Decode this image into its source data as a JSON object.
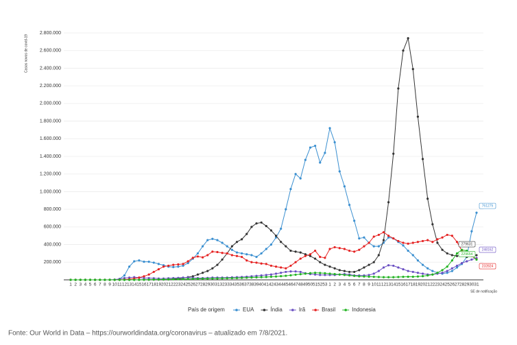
{
  "chart_data": {
    "type": "line",
    "y_label": "Casos novos de covid-19",
    "x_label": "SE de notificação",
    "legend_title": "País de origem",
    "source": "Fonte: Our World in Data – https://ourworldindata.org/coronavirus – atualizado em 7/8/2021.",
    "categories": [
      "1",
      "2",
      "3",
      "4",
      "5",
      "6",
      "7",
      "8",
      "9",
      "10",
      "11",
      "12",
      "13",
      "14",
      "15",
      "16",
      "17",
      "18",
      "19",
      "20",
      "21",
      "22",
      "23",
      "24",
      "25",
      "26",
      "27",
      "28",
      "29",
      "30",
      "31",
      "32",
      "33",
      "34",
      "35",
      "36",
      "37",
      "38",
      "39",
      "40",
      "41",
      "42",
      "43",
      "44",
      "45",
      "46",
      "47",
      "48",
      "49",
      "50",
      "51",
      "52",
      "53",
      "1",
      "2",
      "3",
      "4",
      "5",
      "6",
      "7",
      "8",
      "9",
      "10",
      "11",
      "12",
      "13",
      "14",
      "15",
      "16",
      "17",
      "18",
      "19",
      "20",
      "21",
      "22",
      "23",
      "24",
      "25",
      "26",
      "27",
      "28",
      "29",
      "30",
      "31"
    ],
    "ylim": [
      0,
      2800000
    ],
    "yticks": [
      {
        "value": 200000,
        "label": "200.000"
      },
      {
        "value": 400000,
        "label": "400.000"
      },
      {
        "value": 600000,
        "label": "600.000"
      },
      {
        "value": 800000,
        "label": "800.000"
      },
      {
        "value": 1000000,
        "label": "1.000.000"
      },
      {
        "value": 1200000,
        "label": "1.200.000"
      },
      {
        "value": 1400000,
        "label": "1.400.000"
      },
      {
        "value": 1600000,
        "label": "1.600.000"
      },
      {
        "value": 1800000,
        "label": "1.800.000"
      },
      {
        "value": 2000000,
        "label": "2.000.000"
      },
      {
        "value": 2200000,
        "label": "2.200.000"
      },
      {
        "value": 2400000,
        "label": "2.400.000"
      },
      {
        "value": 2600000,
        "label": "2.600.000"
      },
      {
        "value": 2800000,
        "label": "2.800.000"
      }
    ],
    "grid": true,
    "legend": "bottom",
    "series": [
      {
        "name": "EUA",
        "color": "#3a8fd0",
        "values": [
          0,
          0,
          0,
          0,
          0,
          0,
          0,
          0,
          0,
          1000,
          10000,
          50000,
          150000,
          210000,
          220000,
          205000,
          205000,
          195000,
          180000,
          165000,
          150000,
          145000,
          150000,
          160000,
          190000,
          240000,
          300000,
          380000,
          450000,
          465000,
          450000,
          420000,
          380000,
          340000,
          310000,
          300000,
          290000,
          280000,
          260000,
          300000,
          350000,
          400000,
          480000,
          580000,
          800000,
          1030000,
          1200000,
          1150000,
          1360000,
          1500000,
          1520000,
          1330000,
          1440000,
          1720000,
          1560000,
          1230000,
          1060000,
          850000,
          670000,
          470000,
          480000,
          420000,
          380000,
          380000,
          420000,
          480000,
          470000,
          430000,
          390000,
          330000,
          280000,
          220000,
          170000,
          130000,
          100000,
          80000,
          70000,
          80000,
          100000,
          140000,
          180000,
          260000,
          550000,
          761275
        ]
      },
      {
        "name": "Índia",
        "color": "#333333",
        "values": [
          0,
          0,
          0,
          0,
          0,
          0,
          0,
          0,
          0,
          0,
          0,
          0,
          0,
          1000,
          1000,
          2000,
          2000,
          3000,
          3000,
          4000,
          5000,
          10000,
          15000,
          20000,
          30000,
          40000,
          60000,
          80000,
          100000,
          130000,
          170000,
          230000,
          300000,
          380000,
          430000,
          460000,
          520000,
          600000,
          640000,
          650000,
          610000,
          560000,
          500000,
          430000,
          380000,
          330000,
          320000,
          310000,
          290000,
          270000,
          240000,
          200000,
          170000,
          150000,
          130000,
          110000,
          100000,
          90000,
          90000,
          110000,
          140000,
          170000,
          200000,
          280000,
          450000,
          880000,
          1430000,
          2170000,
          2600000,
          2740000,
          2390000,
          1850000,
          1370000,
          920000,
          630000,
          420000,
          340000,
          300000,
          280000,
          270000,
          280000,
          260000,
          270000,
          279631
        ]
      },
      {
        "name": "Irã",
        "color": "#6a4fc2",
        "values": [
          0,
          0,
          0,
          0,
          0,
          0,
          0,
          0,
          1000,
          3000,
          10000,
          20000,
          25000,
          30000,
          25000,
          20000,
          20000,
          18000,
          15000,
          15000,
          18000,
          20000,
          22000,
          25000,
          25000,
          22000,
          20000,
          20000,
          22000,
          25000,
          25000,
          25000,
          25000,
          28000,
          30000,
          32000,
          35000,
          40000,
          45000,
          50000,
          55000,
          60000,
          70000,
          80000,
          90000,
          95000,
          95000,
          90000,
          75000,
          65000,
          60000,
          55000,
          55000,
          55000,
          55000,
          60000,
          65000,
          60000,
          50000,
          50000,
          50000,
          55000,
          70000,
          100000,
          140000,
          165000,
          160000,
          140000,
          120000,
          100000,
          90000,
          80000,
          70000,
          60000,
          60000,
          70000,
          80000,
          100000,
          130000,
          160000,
          190000,
          210000,
          230000,
          248162
        ]
      },
      {
        "name": "Brasil",
        "color": "#e52222",
        "values": [
          0,
          0,
          0,
          0,
          0,
          0,
          0,
          0,
          0,
          0,
          1000,
          3000,
          8000,
          15000,
          25000,
          40000,
          60000,
          90000,
          120000,
          150000,
          160000,
          170000,
          175000,
          180000,
          210000,
          250000,
          265000,
          255000,
          280000,
          320000,
          315000,
          305000,
          300000,
          280000,
          270000,
          260000,
          220000,
          200000,
          195000,
          185000,
          180000,
          160000,
          150000,
          140000,
          130000,
          160000,
          200000,
          240000,
          270000,
          290000,
          330000,
          260000,
          250000,
          350000,
          370000,
          360000,
          350000,
          330000,
          320000,
          340000,
          380000,
          420000,
          490000,
          510000,
          540000,
          500000,
          470000,
          440000,
          420000,
          410000,
          420000,
          430000,
          440000,
          450000,
          430000,
          460000,
          480000,
          510000,
          500000,
          430000,
          330000,
          300000,
          270000,
          232824
        ]
      },
      {
        "name": "Indonesia",
        "color": "#22b422",
        "values": [
          0,
          0,
          0,
          0,
          0,
          0,
          0,
          0,
          0,
          0,
          0,
          0,
          0,
          0,
          0,
          1000,
          2000,
          3000,
          4000,
          5000,
          6000,
          7000,
          8000,
          9000,
          10000,
          11000,
          12000,
          13000,
          14000,
          15000,
          16000,
          17000,
          18000,
          19000,
          20000,
          22000,
          24000,
          26000,
          28000,
          30000,
          32000,
          35000,
          38000,
          42000,
          46000,
          52000,
          58000,
          64000,
          70000,
          76000,
          80000,
          78000,
          75000,
          70000,
          65000,
          60000,
          55000,
          50000,
          45000,
          40000,
          38000,
          36000,
          34000,
          32000,
          30000,
          30000,
          30000,
          32000,
          34000,
          35000,
          35000,
          38000,
          42000,
          50000,
          60000,
          80000,
          110000,
          150000,
          220000,
          300000,
          340000,
          330000,
          280000,
          229654
        ]
      }
    ]
  }
}
